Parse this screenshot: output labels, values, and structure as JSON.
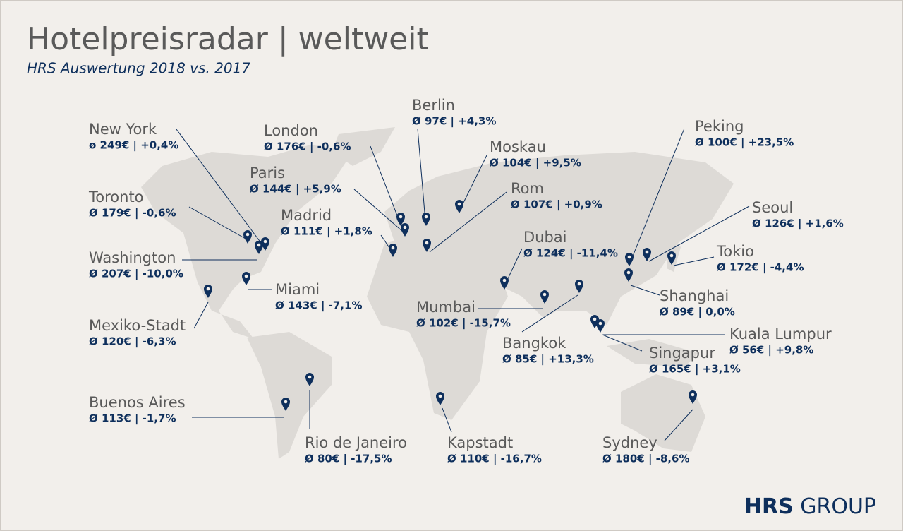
{
  "header": {
    "title": "Hotelpreisradar | weltweit",
    "subtitle": "HRS Auswertung 2018 vs. 2017"
  },
  "cities": [
    {
      "name": "New York",
      "stats": "ø 249€ | +0,4%"
    },
    {
      "name": "Toronto",
      "stats": "Ø 179€ | -0,6%"
    },
    {
      "name": "Washington",
      "stats": "Ø 207€ | -10,0%"
    },
    {
      "name": "Miami",
      "stats": "Ø 143€ | -7,1%"
    },
    {
      "name": "Mexiko-Stadt",
      "stats": "Ø 120€ | -6,3%"
    },
    {
      "name": "Buenos Aires",
      "stats": "Ø 113€ | -1,7%"
    },
    {
      "name": "Rio de Janeiro",
      "stats": "Ø 80€ | -17,5%"
    },
    {
      "name": "London",
      "stats": "Ø 176€ | -0,6%"
    },
    {
      "name": "Paris",
      "stats": "Ø 144€ | +5,9%"
    },
    {
      "name": "Madrid",
      "stats": "Ø 111€ | +1,8%"
    },
    {
      "name": "Berlin",
      "stats": "Ø 97€ | +4,3%"
    },
    {
      "name": "Moskau",
      "stats": "Ø 104€ | +9,5%"
    },
    {
      "name": "Rom",
      "stats": "Ø 107€ | +0,9%"
    },
    {
      "name": "Dubai",
      "stats": "Ø 124€ | -11,4%"
    },
    {
      "name": "Mumbai",
      "stats": "Ø 102€ | -15,7%"
    },
    {
      "name": "Bangkok",
      "stats": "Ø 85€ | +13,3%"
    },
    {
      "name": "Kapstadt",
      "stats": "Ø 110€ | -16,7%"
    },
    {
      "name": "Peking",
      "stats": "Ø 100€ | +23,5%"
    },
    {
      "name": "Seoul",
      "stats": "Ø 126€ | +1,6%"
    },
    {
      "name": "Tokio",
      "stats": "Ø 172€ | -4,4%"
    },
    {
      "name": "Shanghai",
      "stats": "Ø 89€ | 0,0%"
    },
    {
      "name": "Kuala Lumpur",
      "stats": "Ø 56€ | +9,8%"
    },
    {
      "name": "Singapur",
      "stats": "Ø 165€ | +3,1%"
    },
    {
      "name": "Sydney",
      "stats": "Ø 180€ | -8,6%"
    }
  ],
  "logo": {
    "bold": "HRS",
    "light": "GROUP"
  }
}
